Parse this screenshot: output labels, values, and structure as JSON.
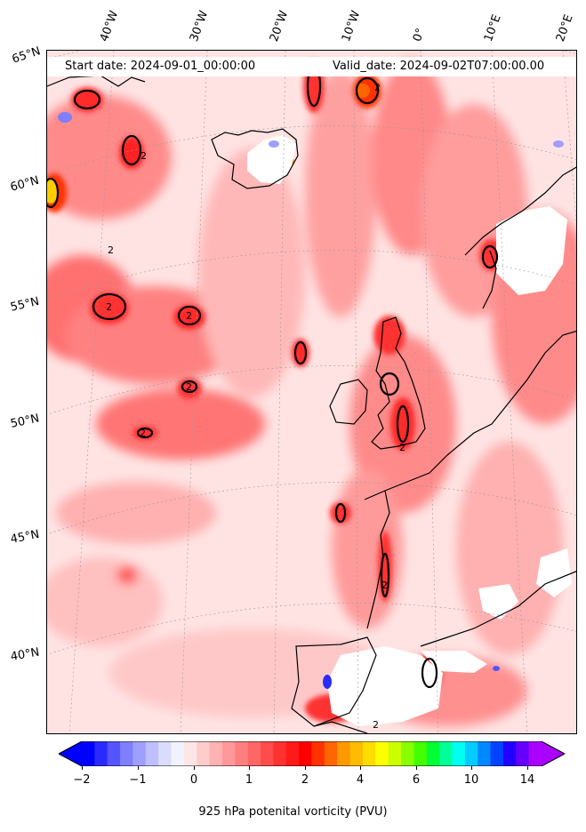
{
  "header": {
    "start_date": "Start date: 2024-09-01_00:00:00",
    "valid_date": "Valid_date: 2024-09-02T07:00:00.00"
  },
  "longitude_labels": [
    "40°W",
    "30°W",
    "20°W",
    "10°W",
    "0°",
    "10°E",
    "20°E"
  ],
  "latitude_labels": [
    "65°N",
    "60°N",
    "55°N",
    "50°N",
    "45°N",
    "40°N"
  ],
  "colorbar": {
    "label": "925 hPa potenital vorticity (PVU)",
    "ticks": [
      "−2",
      "−1",
      "0",
      "1",
      "2",
      "4",
      "6",
      "10",
      "14"
    ],
    "colors": [
      "#0000ff",
      "#2a2aff",
      "#5555ff",
      "#7f7fff",
      "#9f9fff",
      "#bfbfff",
      "#dcdcff",
      "#f2f2ff",
      "#ffe6e6",
      "#ffcccc",
      "#ffb2b2",
      "#ff9999",
      "#ff7f7f",
      "#ff6666",
      "#ff4c4c",
      "#ff3232",
      "#ff1919",
      "#ff0000",
      "#ff3300",
      "#ff6600",
      "#ff9900",
      "#ffbb00",
      "#ffdd00",
      "#ffff00",
      "#ccff00",
      "#88ff00",
      "#44ff00",
      "#00ff33",
      "#00ff99",
      "#00ffee",
      "#00ccff",
      "#0088ff",
      "#0044ff",
      "#2200ff",
      "#6600ff",
      "#aa00ff"
    ]
  },
  "contour_label": "2"
}
